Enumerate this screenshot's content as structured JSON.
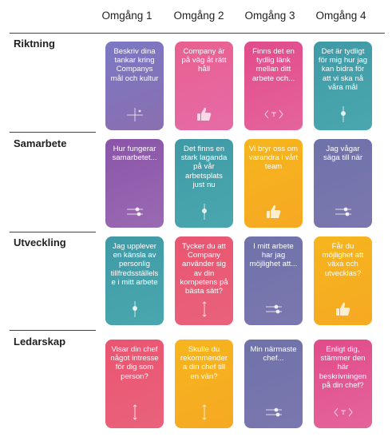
{
  "columns": [
    "Omgång 1",
    "Omgång 2",
    "Omgång 3",
    "Omgång 4"
  ],
  "rows": [
    {
      "label": "Riktning",
      "cards": [
        {
          "text": "Beskriv dina tankar kring Companys mål och kultur",
          "color": "#7b78c4",
          "icon": "crosshair-icon"
        },
        {
          "text": "Company är på väg åt rätt håll",
          "color": "#e9608f",
          "icon": "thumbs-up-icon"
        },
        {
          "text": "Finns det en tydlig länk mellan ditt arbete och...",
          "color": "#e24b8a",
          "icon": "scale-icon"
        },
        {
          "text": "Det är tydligt för mig hur jag kan bidra för att vi ska nå våra mål",
          "color": "#3f9aa6",
          "icon": "slider-vertical-icon"
        }
      ]
    },
    {
      "label": "Samarbete",
      "cards": [
        {
          "text": "Hur fungerar samarbetet...",
          "color": "#8a55a8",
          "icon": "sliders-icon"
        },
        {
          "text": "Det finns en stark laganda på vår arbetsplats just nu",
          "color": "#3f9aa6",
          "icon": "slider-vertical-icon"
        },
        {
          "text": "Vi bryr oss om varandra i vårt team",
          "color": "#f6b51d",
          "icon": "thumbs-up-icon"
        },
        {
          "text": "Jag vågar säga till när",
          "color": "#6f72aa",
          "icon": "sliders-icon"
        }
      ]
    },
    {
      "label": "Utveckling",
      "cards": [
        {
          "text": "Jag upplever en känsla av personlig tillfredsställelse i mitt arbete",
          "color": "#3f9aa6",
          "icon": "slider-vertical-icon"
        },
        {
          "text": "Tycker du att Company använder sig av din kompetens på bästa sätt?",
          "color": "#ea5571",
          "icon": "arrow-vertical-icon"
        },
        {
          "text": "I mitt arbete har jag möjlighet att...",
          "color": "#6f72aa",
          "icon": "sliders-icon"
        },
        {
          "text": "Får du möjlighet att växa och utvecklas?",
          "color": "#f6b51d",
          "icon": "thumbs-up-icon"
        }
      ]
    },
    {
      "label": "Ledarskap",
      "cards": [
        {
          "text": "Visar din chef något intresse för dig som person?",
          "color": "#ea5571",
          "icon": "arrow-vertical-icon"
        },
        {
          "text": "Skulle du rekommendera din chef till en vän?",
          "color": "#f6b51d",
          "icon": "arrow-vertical-icon"
        },
        {
          "text": "Min närmaste chef...",
          "color": "#6f72aa",
          "icon": "sliders-icon"
        },
        {
          "text": "Enligt dig, stämmer den här beskrivningen på din chef?",
          "color": "#e24b8a",
          "icon": "scale-icon"
        }
      ]
    }
  ]
}
